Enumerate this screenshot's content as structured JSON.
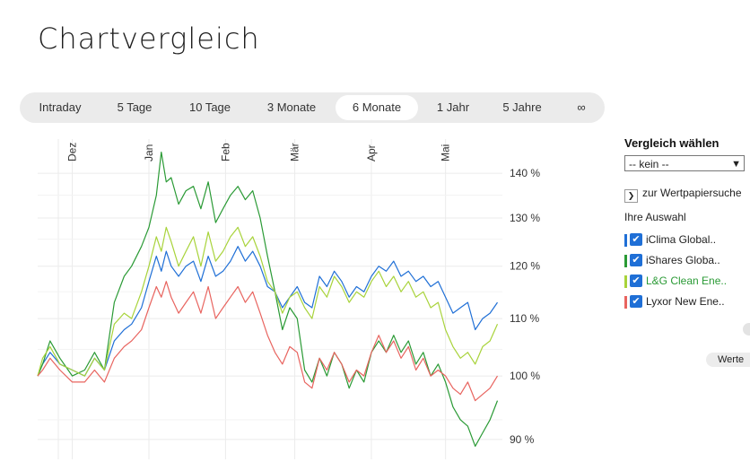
{
  "page": {
    "title": "Chartvergleich"
  },
  "range_tabs": {
    "items": [
      {
        "label": "Intraday"
      },
      {
        "label": "5 Tage"
      },
      {
        "label": "10 Tage"
      },
      {
        "label": "3 Monate"
      },
      {
        "label": "6 Monate"
      },
      {
        "label": "1 Jahr"
      },
      {
        "label": "5 Jahre"
      },
      {
        "label": "∞"
      }
    ],
    "active": "6 Monate"
  },
  "sidebar": {
    "compare_title": "Vergleich wählen",
    "compare_select": {
      "value": "-- kein --"
    },
    "search_link": "zur Wertpapiersuche",
    "selection_title": "Ihre Auswahl",
    "selections": [
      {
        "label": "iClima Global..",
        "color": "#1f6fd6",
        "text_color": "#222222",
        "checked": true
      },
      {
        "label": "iShares Globa..",
        "color": "#2a9a35",
        "text_color": "#222222",
        "checked": true
      },
      {
        "label": "L&G Clean Ene..",
        "color": "#a8d33a",
        "text_color": "#2a9a35",
        "checked": true
      },
      {
        "label": "Lyxor New Ene..",
        "color": "#e8645f",
        "text_color": "#222222",
        "checked": true
      }
    ],
    "werte_button": "Werte"
  },
  "chart_data": {
    "type": "line",
    "months": [
      "Dez",
      "Jan",
      "Feb",
      "Mär",
      "Apr",
      "Mai"
    ],
    "y_ticks": [
      "140 %",
      "130 %",
      "120 %",
      "110 %",
      "100 %",
      "90 %"
    ],
    "ylim": [
      88,
      146
    ],
    "y_scale": "log",
    "xlim": [
      "2020-11-17",
      "2021-05-24"
    ],
    "grid": true,
    "series": [
      {
        "name": "iClima Global..",
        "color": "#1f6fd6",
        "points": [
          [
            "2020-11-17",
            100
          ],
          [
            "2020-11-19",
            102
          ],
          [
            "2020-11-22",
            104
          ],
          [
            "2020-11-26",
            102
          ],
          [
            "2020-12-01",
            101
          ],
          [
            "2020-12-06",
            100
          ],
          [
            "2020-12-10",
            103
          ],
          [
            "2020-12-14",
            101
          ],
          [
            "2020-12-18",
            106
          ],
          [
            "2020-12-22",
            108
          ],
          [
            "2020-12-25",
            109
          ],
          [
            "2020-12-29",
            112
          ],
          [
            "2021-01-01",
            117
          ],
          [
            "2021-01-04",
            122
          ],
          [
            "2021-01-06",
            119
          ],
          [
            "2021-01-08",
            123
          ],
          [
            "2021-01-10",
            120
          ],
          [
            "2021-01-13",
            118
          ],
          [
            "2021-01-16",
            120
          ],
          [
            "2021-01-19",
            121
          ],
          [
            "2021-01-22",
            117
          ],
          [
            "2021-01-25",
            122
          ],
          [
            "2021-01-28",
            118
          ],
          [
            "2021-01-31",
            119
          ],
          [
            "2021-02-03",
            121
          ],
          [
            "2021-02-06",
            124
          ],
          [
            "2021-02-09",
            121
          ],
          [
            "2021-02-12",
            123
          ],
          [
            "2021-02-15",
            120
          ],
          [
            "2021-02-18",
            116
          ],
          [
            "2021-02-21",
            115
          ],
          [
            "2021-02-24",
            112
          ],
          [
            "2021-02-27",
            114
          ],
          [
            "2021-03-02",
            116
          ],
          [
            "2021-03-05",
            113
          ],
          [
            "2021-03-08",
            112
          ],
          [
            "2021-03-11",
            118
          ],
          [
            "2021-03-14",
            116
          ],
          [
            "2021-03-17",
            119
          ],
          [
            "2021-03-20",
            117
          ],
          [
            "2021-03-23",
            114
          ],
          [
            "2021-03-26",
            116
          ],
          [
            "2021-03-29",
            115
          ],
          [
            "2021-04-01",
            118
          ],
          [
            "2021-04-04",
            120
          ],
          [
            "2021-04-07",
            119
          ],
          [
            "2021-04-10",
            121
          ],
          [
            "2021-04-13",
            118
          ],
          [
            "2021-04-16",
            119
          ],
          [
            "2021-04-19",
            117
          ],
          [
            "2021-04-22",
            118
          ],
          [
            "2021-04-25",
            116
          ],
          [
            "2021-04-28",
            117
          ],
          [
            "2021-05-01",
            114
          ],
          [
            "2021-05-04",
            111
          ],
          [
            "2021-05-07",
            112
          ],
          [
            "2021-05-10",
            113
          ],
          [
            "2021-05-13",
            108
          ],
          [
            "2021-05-16",
            110
          ],
          [
            "2021-05-19",
            111
          ],
          [
            "2021-05-22",
            113
          ]
        ]
      },
      {
        "name": "iShares Globa..",
        "color": "#2a9a35",
        "points": [
          [
            "2020-11-17",
            100
          ],
          [
            "2020-11-19",
            102
          ],
          [
            "2020-11-22",
            106
          ],
          [
            "2020-11-26",
            103
          ],
          [
            "2020-12-01",
            100
          ],
          [
            "2020-12-06",
            101
          ],
          [
            "2020-12-10",
            104
          ],
          [
            "2020-12-14",
            101
          ],
          [
            "2020-12-18",
            113
          ],
          [
            "2020-12-22",
            118
          ],
          [
            "2020-12-25",
            120
          ],
          [
            "2020-12-29",
            124
          ],
          [
            "2021-01-01",
            128
          ],
          [
            "2021-01-04",
            135
          ],
          [
            "2021-01-06",
            145
          ],
          [
            "2021-01-08",
            138
          ],
          [
            "2021-01-10",
            139
          ],
          [
            "2021-01-13",
            133
          ],
          [
            "2021-01-16",
            136
          ],
          [
            "2021-01-19",
            137
          ],
          [
            "2021-01-22",
            132
          ],
          [
            "2021-01-25",
            138
          ],
          [
            "2021-01-28",
            129
          ],
          [
            "2021-01-31",
            132
          ],
          [
            "2021-02-03",
            135
          ],
          [
            "2021-02-06",
            137
          ],
          [
            "2021-02-09",
            134
          ],
          [
            "2021-02-12",
            136
          ],
          [
            "2021-02-15",
            130
          ],
          [
            "2021-02-18",
            122
          ],
          [
            "2021-02-21",
            115
          ],
          [
            "2021-02-24",
            108
          ],
          [
            "2021-02-27",
            112
          ],
          [
            "2021-03-02",
            110
          ],
          [
            "2021-03-05",
            101
          ],
          [
            "2021-03-08",
            99
          ],
          [
            "2021-03-11",
            103
          ],
          [
            "2021-03-14",
            100
          ],
          [
            "2021-03-17",
            104
          ],
          [
            "2021-03-20",
            102
          ],
          [
            "2021-03-23",
            98
          ],
          [
            "2021-03-26",
            101
          ],
          [
            "2021-03-29",
            99
          ],
          [
            "2021-04-01",
            104
          ],
          [
            "2021-04-04",
            106
          ],
          [
            "2021-04-07",
            104
          ],
          [
            "2021-04-10",
            107
          ],
          [
            "2021-04-13",
            104
          ],
          [
            "2021-04-16",
            106
          ],
          [
            "2021-04-19",
            102
          ],
          [
            "2021-04-22",
            104
          ],
          [
            "2021-04-25",
            100
          ],
          [
            "2021-04-28",
            102
          ],
          [
            "2021-05-01",
            99
          ],
          [
            "2021-05-04",
            95
          ],
          [
            "2021-05-07",
            93
          ],
          [
            "2021-05-10",
            92
          ],
          [
            "2021-05-13",
            89
          ],
          [
            "2021-05-16",
            91
          ],
          [
            "2021-05-19",
            93
          ],
          [
            "2021-05-22",
            96
          ]
        ]
      },
      {
        "name": "L&G Clean Ene..",
        "color": "#a8d33a",
        "points": [
          [
            "2020-11-17",
            100
          ],
          [
            "2020-11-19",
            103
          ],
          [
            "2020-11-22",
            105
          ],
          [
            "2020-11-26",
            102
          ],
          [
            "2020-12-01",
            101
          ],
          [
            "2020-12-06",
            100
          ],
          [
            "2020-12-10",
            103
          ],
          [
            "2020-12-14",
            101
          ],
          [
            "2020-12-18",
            109
          ],
          [
            "2020-12-22",
            111
          ],
          [
            "2020-12-25",
            110
          ],
          [
            "2020-12-29",
            115
          ],
          [
            "2021-01-01",
            120
          ],
          [
            "2021-01-04",
            126
          ],
          [
            "2021-01-06",
            123
          ],
          [
            "2021-01-08",
            128
          ],
          [
            "2021-01-10",
            125
          ],
          [
            "2021-01-13",
            120
          ],
          [
            "2021-01-16",
            123
          ],
          [
            "2021-01-19",
            126
          ],
          [
            "2021-01-22",
            120
          ],
          [
            "2021-01-25",
            127
          ],
          [
            "2021-01-28",
            121
          ],
          [
            "2021-01-31",
            123
          ],
          [
            "2021-02-03",
            126
          ],
          [
            "2021-02-06",
            128
          ],
          [
            "2021-02-09",
            124
          ],
          [
            "2021-02-12",
            126
          ],
          [
            "2021-02-15",
            122
          ],
          [
            "2021-02-18",
            117
          ],
          [
            "2021-02-21",
            115
          ],
          [
            "2021-02-24",
            111
          ],
          [
            "2021-02-27",
            114
          ],
          [
            "2021-03-02",
            115
          ],
          [
            "2021-03-05",
            112
          ],
          [
            "2021-03-08",
            110
          ],
          [
            "2021-03-11",
            116
          ],
          [
            "2021-03-14",
            114
          ],
          [
            "2021-03-17",
            118
          ],
          [
            "2021-03-20",
            116
          ],
          [
            "2021-03-23",
            113
          ],
          [
            "2021-03-26",
            115
          ],
          [
            "2021-03-29",
            114
          ],
          [
            "2021-04-01",
            117
          ],
          [
            "2021-04-04",
            119
          ],
          [
            "2021-04-07",
            116
          ],
          [
            "2021-04-10",
            118
          ],
          [
            "2021-04-13",
            115
          ],
          [
            "2021-04-16",
            117
          ],
          [
            "2021-04-19",
            114
          ],
          [
            "2021-04-22",
            115
          ],
          [
            "2021-04-25",
            112
          ],
          [
            "2021-04-28",
            113
          ],
          [
            "2021-05-01",
            108
          ],
          [
            "2021-05-04",
            105
          ],
          [
            "2021-05-07",
            103
          ],
          [
            "2021-05-10",
            104
          ],
          [
            "2021-05-13",
            102
          ],
          [
            "2021-05-16",
            105
          ],
          [
            "2021-05-19",
            106
          ],
          [
            "2021-05-22",
            109
          ]
        ]
      },
      {
        "name": "Lyxor New Ene..",
        "color": "#e8645f",
        "points": [
          [
            "2020-11-17",
            100
          ],
          [
            "2020-11-19",
            101
          ],
          [
            "2020-11-22",
            103
          ],
          [
            "2020-11-26",
            101
          ],
          [
            "2020-12-01",
            99
          ],
          [
            "2020-12-06",
            99
          ],
          [
            "2020-12-10",
            101
          ],
          [
            "2020-12-14",
            99
          ],
          [
            "2020-12-18",
            103
          ],
          [
            "2020-12-22",
            105
          ],
          [
            "2020-12-25",
            106
          ],
          [
            "2020-12-29",
            108
          ],
          [
            "2021-01-01",
            112
          ],
          [
            "2021-01-04",
            116
          ],
          [
            "2021-01-06",
            114
          ],
          [
            "2021-01-08",
            117
          ],
          [
            "2021-01-10",
            114
          ],
          [
            "2021-01-13",
            111
          ],
          [
            "2021-01-16",
            113
          ],
          [
            "2021-01-19",
            115
          ],
          [
            "2021-01-22",
            111
          ],
          [
            "2021-01-25",
            116
          ],
          [
            "2021-01-28",
            110
          ],
          [
            "2021-01-31",
            112
          ],
          [
            "2021-02-03",
            114
          ],
          [
            "2021-02-06",
            116
          ],
          [
            "2021-02-09",
            113
          ],
          [
            "2021-02-12",
            115
          ],
          [
            "2021-02-15",
            111
          ],
          [
            "2021-02-18",
            107
          ],
          [
            "2021-02-21",
            104
          ],
          [
            "2021-02-24",
            102
          ],
          [
            "2021-02-27",
            105
          ],
          [
            "2021-03-02",
            104
          ],
          [
            "2021-03-05",
            99
          ],
          [
            "2021-03-08",
            98
          ],
          [
            "2021-03-11",
            103
          ],
          [
            "2021-03-14",
            101
          ],
          [
            "2021-03-17",
            104
          ],
          [
            "2021-03-20",
            102
          ],
          [
            "2021-03-23",
            99
          ],
          [
            "2021-03-26",
            101
          ],
          [
            "2021-03-29",
            100
          ],
          [
            "2021-04-01",
            104
          ],
          [
            "2021-04-04",
            107
          ],
          [
            "2021-04-07",
            104
          ],
          [
            "2021-04-10",
            106
          ],
          [
            "2021-04-13",
            103
          ],
          [
            "2021-04-16",
            105
          ],
          [
            "2021-04-19",
            101
          ],
          [
            "2021-04-22",
            103
          ],
          [
            "2021-04-25",
            100
          ],
          [
            "2021-04-28",
            101
          ],
          [
            "2021-05-01",
            100
          ],
          [
            "2021-05-04",
            98
          ],
          [
            "2021-05-07",
            97
          ],
          [
            "2021-05-10",
            99
          ],
          [
            "2021-05-13",
            96
          ],
          [
            "2021-05-16",
            97
          ],
          [
            "2021-05-19",
            98
          ],
          [
            "2021-05-22",
            100
          ]
        ]
      }
    ]
  }
}
